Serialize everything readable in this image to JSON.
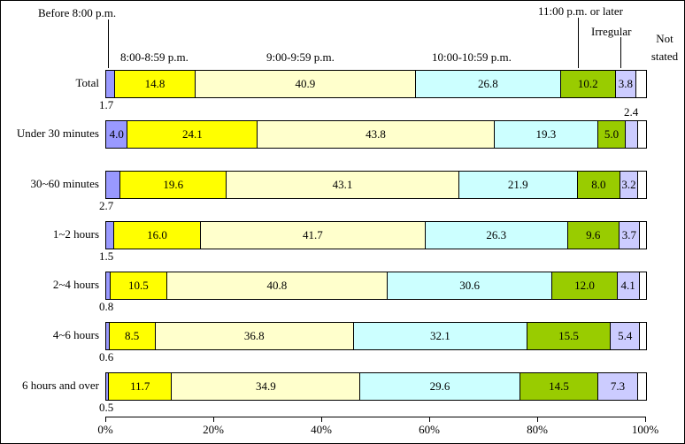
{
  "chart_data": {
    "type": "bar",
    "orientation": "horizontal",
    "stacked": true,
    "unit": "%",
    "xlim": [
      0,
      100
    ],
    "x_ticks": [
      "0%",
      "20%",
      "40%",
      "60%",
      "80%",
      "100%"
    ],
    "legend_position": "top",
    "series": [
      "Before 8:00 p.m.",
      "8:00-8:59 p.m.",
      "9:00-9:59 p.m.",
      "10:00-10:59 p.m.",
      "11:00 p.m. or later",
      "Irregular",
      "Not stated"
    ],
    "series_colors": [
      "#9999ff",
      "#ffff00",
      "#ffffcc",
      "#ccffff",
      "#99cc00",
      "#ccccff",
      "#ffffff"
    ],
    "categories": [
      "Total",
      "Under 30 minutes",
      "30~60 minutes",
      "1~2 hours",
      "2~4 hours",
      "4~6 hours",
      "6 hours and over"
    ],
    "rows": [
      {
        "category": "Total",
        "values": [
          1.7,
          14.8,
          40.9,
          26.8,
          10.2,
          3.8,
          1.8
        ],
        "labels": [
          "1.7",
          "14.8",
          "40.9",
          "26.8",
          "10.2",
          "3.8",
          ""
        ],
        "label_pos": [
          "below",
          "in",
          "in",
          "in",
          "in",
          "in",
          "none"
        ]
      },
      {
        "category": "Under 30 minutes",
        "values": [
          4.0,
          24.1,
          43.8,
          19.3,
          5.0,
          2.4,
          1.4
        ],
        "labels": [
          "4.0",
          "24.1",
          "43.8",
          "19.3",
          "5.0",
          "2.4",
          ""
        ],
        "label_pos": [
          "in",
          "in",
          "in",
          "in",
          "in",
          "above",
          "none"
        ]
      },
      {
        "category": "30~60 minutes",
        "values": [
          2.7,
          19.6,
          43.1,
          21.9,
          8.0,
          3.2,
          1.5
        ],
        "labels": [
          "2.7",
          "19.6",
          "43.1",
          "21.9",
          "8.0",
          "3.2",
          ""
        ],
        "label_pos": [
          "below",
          "in",
          "in",
          "in",
          "in",
          "in",
          "none"
        ]
      },
      {
        "category": "1~2 hours",
        "values": [
          1.5,
          16.0,
          41.7,
          26.3,
          9.6,
          3.7,
          1.2
        ],
        "labels": [
          "1.5",
          "16.0",
          "41.7",
          "26.3",
          "9.6",
          "3.7",
          ""
        ],
        "label_pos": [
          "below",
          "in",
          "in",
          "in",
          "in",
          "in",
          "none"
        ]
      },
      {
        "category": "2~4 hours",
        "values": [
          0.8,
          10.5,
          40.8,
          30.6,
          12.0,
          4.1,
          1.2
        ],
        "labels": [
          "0.8",
          "10.5",
          "40.8",
          "30.6",
          "12.0",
          "4.1",
          ""
        ],
        "label_pos": [
          "below",
          "in",
          "in",
          "in",
          "in",
          "in",
          "none"
        ]
      },
      {
        "category": "4~6 hours",
        "values": [
          0.6,
          8.5,
          36.8,
          32.1,
          15.5,
          5.4,
          1.1
        ],
        "labels": [
          "0.6",
          "8.5",
          "36.8",
          "32.1",
          "15.5",
          "5.4",
          ""
        ],
        "label_pos": [
          "below",
          "in",
          "in",
          "in",
          "in",
          "in",
          "none"
        ]
      },
      {
        "category": "6 hours and over",
        "values": [
          0.5,
          11.7,
          34.9,
          29.6,
          14.5,
          7.3,
          1.5
        ],
        "labels": [
          "0.5",
          "11.7",
          "34.9",
          "29.6",
          "14.5",
          "7.3",
          ""
        ],
        "label_pos": [
          "below",
          "in",
          "in",
          "in",
          "in",
          "in",
          "none"
        ]
      }
    ],
    "annotations": {
      "before8": "Before 8:00 p.m.",
      "s8": "8:00-8:59 p.m.",
      "s9": "9:00-9:59 p.m.",
      "s10": "10:00-10:59 p.m.",
      "s11": "11:00 p.m. or later",
      "irregular": "Irregular",
      "not_stated": "Not stated"
    }
  }
}
